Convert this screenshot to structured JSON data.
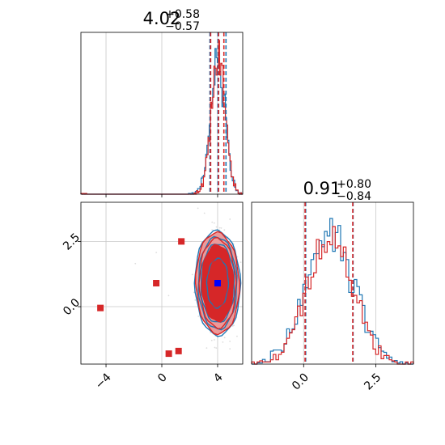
{
  "colors": {
    "blue": "#1f77b4",
    "red": "#d62728",
    "marker_blue": "#0000ff",
    "grid": "#c8c8c8",
    "fill_dark": "#d62728",
    "fill_light": "#ec9a9a"
  },
  "chart_data": [
    {
      "type": "histogram",
      "panel": "top-left",
      "title_value": "4.02",
      "title_plus": "+0.58",
      "title_minus": "−0.57",
      "xlim": [
        -5.8,
        5.8
      ],
      "quantiles": {
        "blue": [
          3.45,
          4.02,
          4.6
        ],
        "red": [
          3.5,
          4.07,
          4.45
        ]
      },
      "x_ticks": [
        -4,
        0,
        4
      ],
      "grid": true
    },
    {
      "type": "histogram",
      "panel": "bottom-right",
      "title_value": "0.91",
      "title_plus": "+0.80",
      "title_minus": "−0.84",
      "xlim": [
        -1.8,
        3.8
      ],
      "quantiles": {
        "blue": [
          0.07,
          0.91,
          1.71
        ],
        "red": [
          0.05,
          0.91,
          1.7
        ]
      },
      "x_ticks": [
        0.0,
        2.5
      ],
      "x_tick_labels": [
        "0.0",
        "2.5"
      ],
      "grid": true
    },
    {
      "type": "scatter",
      "panel": "bottom-left",
      "xlim": [
        -5.8,
        5.8
      ],
      "ylim": [
        -2.2,
        4.0
      ],
      "x_ticks": [
        -4,
        0,
        4
      ],
      "x_tick_labels": [
        "−4",
        "0",
        "4"
      ],
      "y_ticks": [
        0.0,
        2.5
      ],
      "y_tick_labels": [
        "0.0",
        "2.5"
      ],
      "grid": true,
      "contour_center": [
        4.0,
        0.9
      ],
      "red_points": [
        [
          -4.4,
          -0.05
        ],
        [
          -0.4,
          0.9
        ],
        [
          1.4,
          2.5
        ],
        [
          0.5,
          -1.8
        ],
        [
          1.2,
          -1.7
        ]
      ],
      "blue_point": [
        4.0,
        0.9
      ]
    }
  ]
}
